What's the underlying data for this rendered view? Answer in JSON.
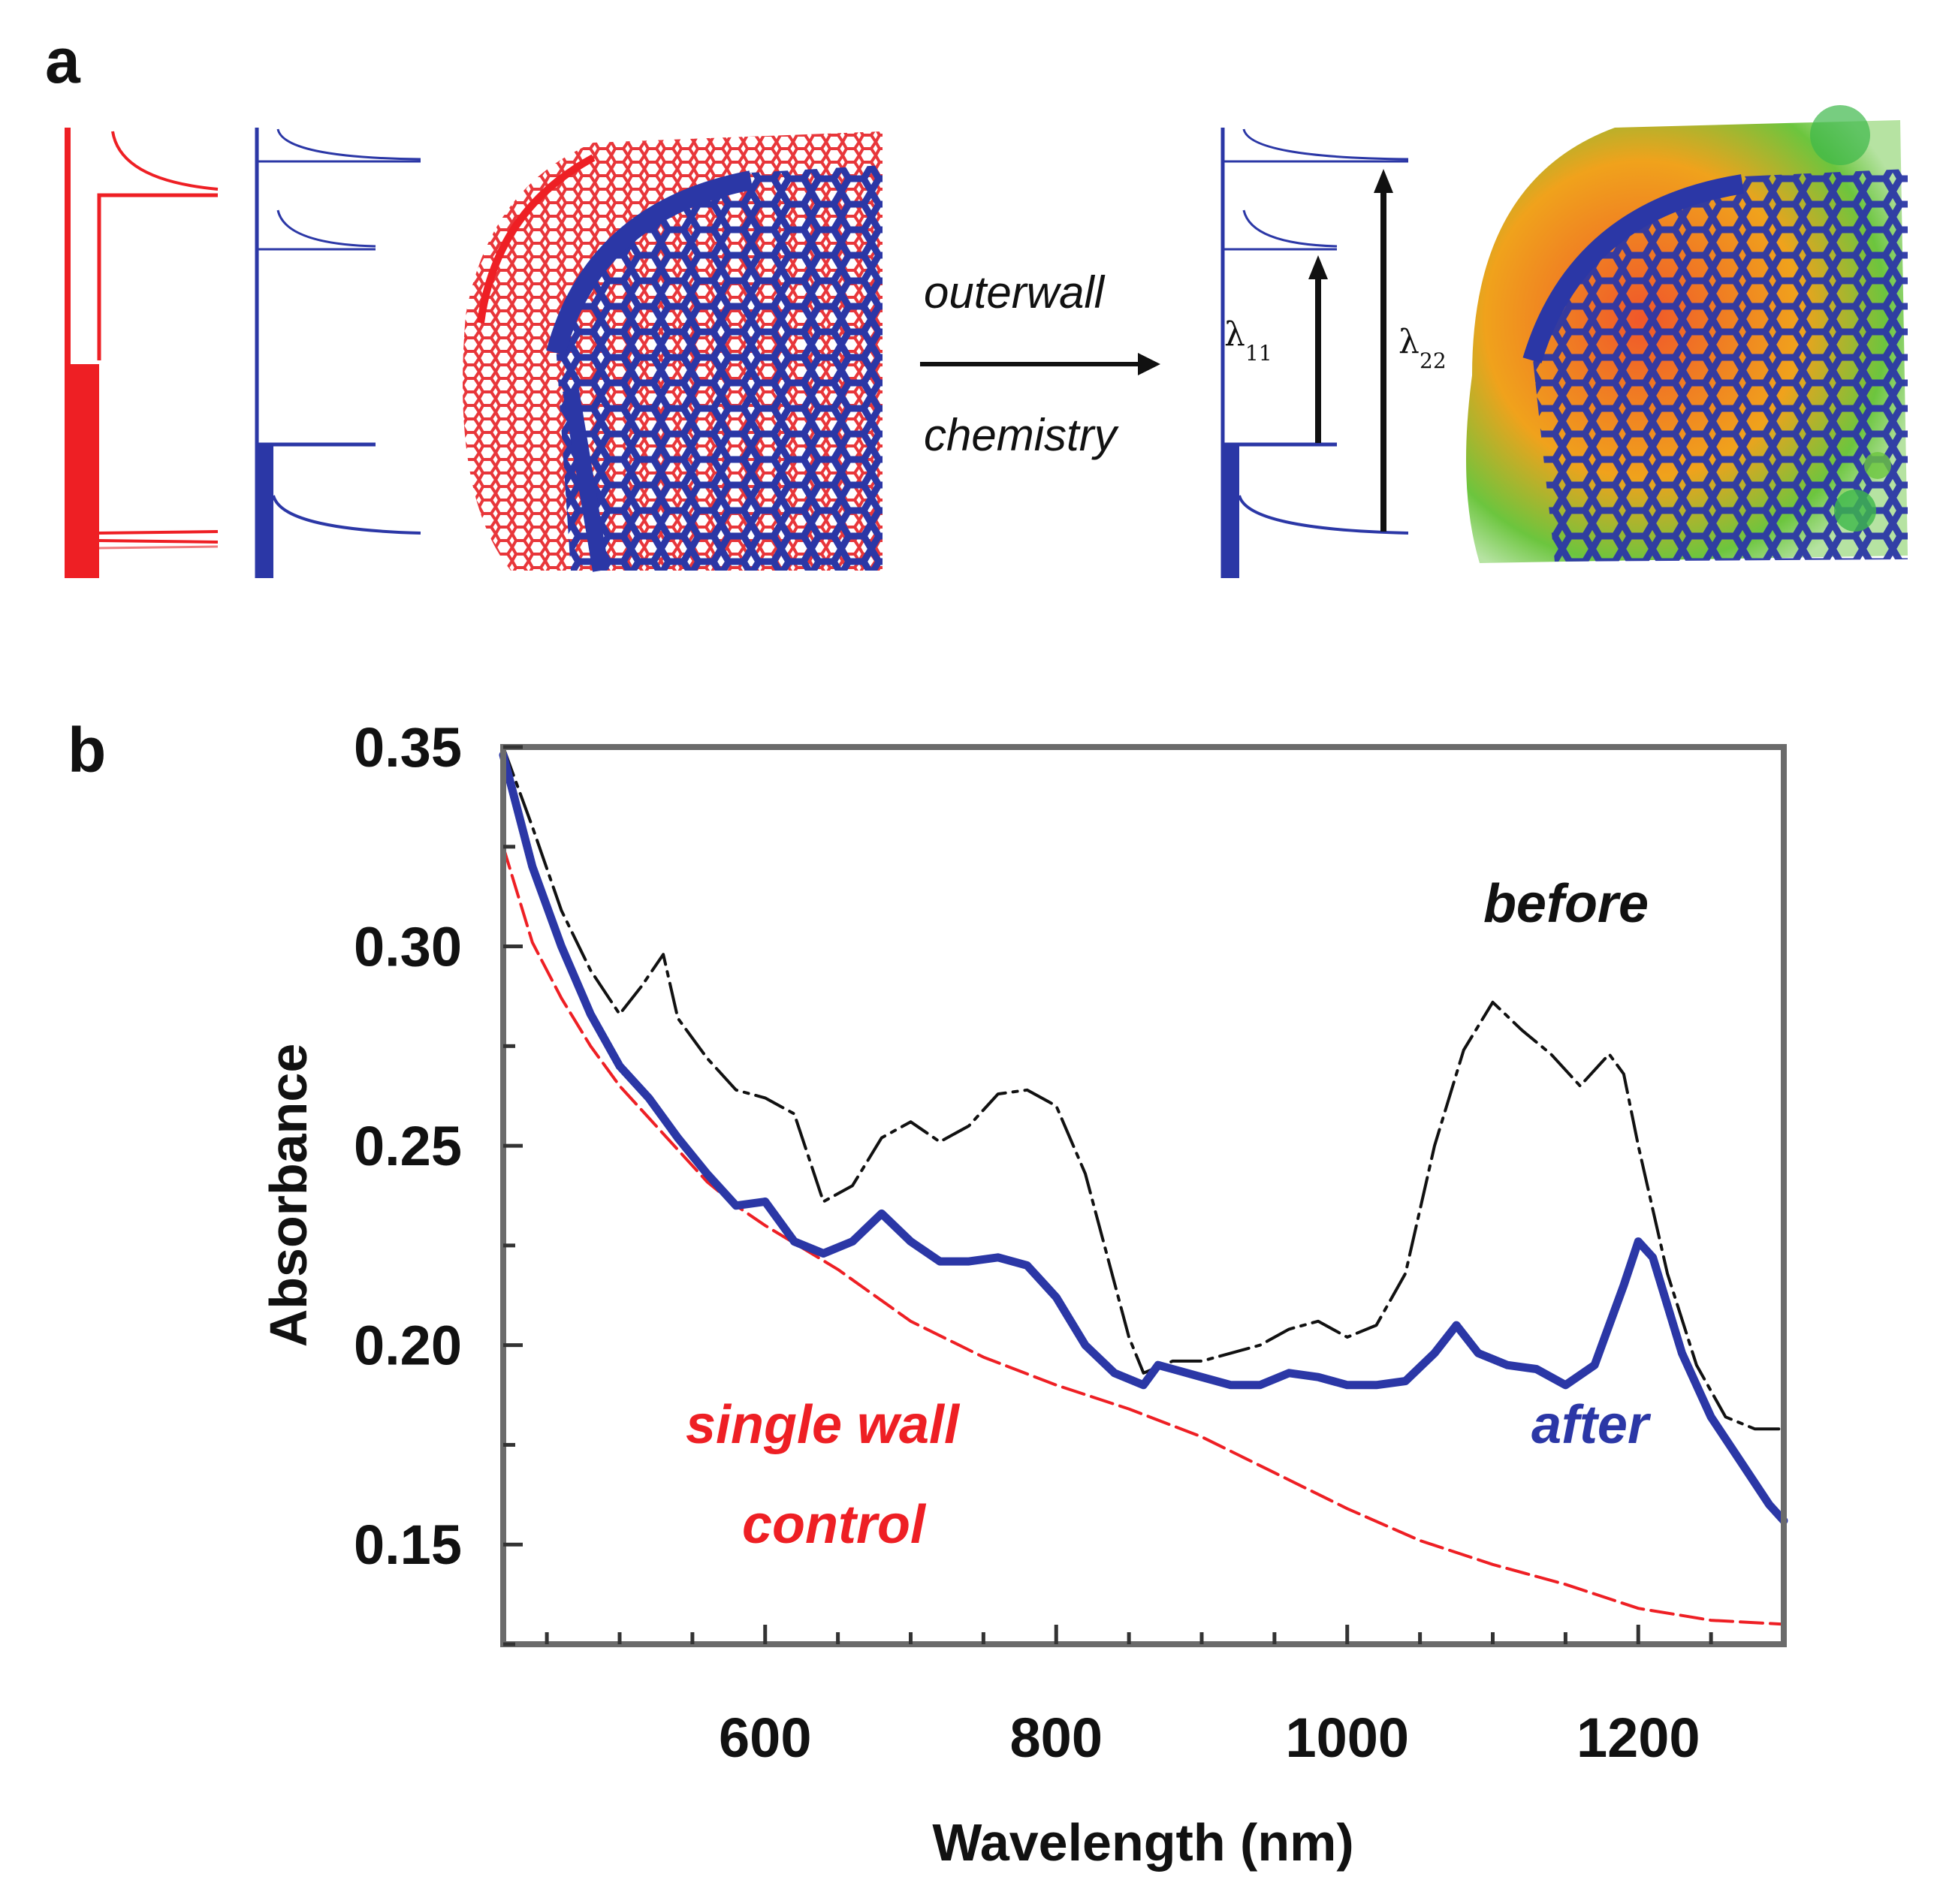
{
  "panel_a": {
    "letter": "a",
    "arrow_label_top": "outerwall",
    "arrow_label_bottom": "chemistry",
    "lambda11": {
      "symbol": "λ",
      "sub": "11"
    },
    "lambda22": {
      "symbol": "λ",
      "sub": "22"
    },
    "colors": {
      "red": "#ee1f24",
      "blue": "#2b37a6",
      "green": "#3db84a",
      "orange": "#f07a1c"
    }
  },
  "panel_b": {
    "letter": "b"
  },
  "chart_data": {
    "type": "line",
    "title": "",
    "xlabel": "Wavelength (nm)",
    "ylabel": "Absorbance",
    "xlim": [
      420,
      1300
    ],
    "ylim": [
      0.125,
      0.35
    ],
    "xticks": [
      600,
      800,
      1000,
      1200
    ],
    "xtick_labels": [
      "600",
      "800",
      "1000",
      "1200"
    ],
    "yticks": [
      0.15,
      0.2,
      0.25,
      0.3,
      0.35
    ],
    "ytick_labels": [
      "0.15",
      "0.20",
      "0.25",
      "0.30",
      "0.35"
    ],
    "grid": false,
    "series": [
      {
        "name": "before",
        "label": "before",
        "color": "#111111",
        "style": "dash-dot",
        "x": [
          420,
          440,
          460,
          480,
          500,
          515,
          530,
          540,
          560,
          580,
          600,
          620,
          640,
          660,
          680,
          700,
          720,
          740,
          760,
          780,
          800,
          820,
          850,
          860,
          880,
          900,
          920,
          940,
          960,
          980,
          1000,
          1020,
          1040,
          1060,
          1080,
          1100,
          1120,
          1140,
          1160,
          1180,
          1190,
          1200,
          1220,
          1240,
          1260,
          1280,
          1300
        ],
        "y": [
          0.35,
          0.33,
          0.309,
          0.294,
          0.283,
          0.29,
          0.298,
          0.282,
          0.272,
          0.264,
          0.262,
          0.258,
          0.236,
          0.24,
          0.252,
          0.256,
          0.251,
          0.255,
          0.263,
          0.264,
          0.26,
          0.243,
          0.202,
          0.193,
          0.196,
          0.196,
          0.198,
          0.2,
          0.204,
          0.206,
          0.202,
          0.205,
          0.218,
          0.25,
          0.274,
          0.286,
          0.279,
          0.273,
          0.265,
          0.273,
          0.268,
          0.25,
          0.218,
          0.195,
          0.182,
          0.179,
          0.179
        ]
      },
      {
        "name": "after",
        "label": "after",
        "color": "#2b37a6",
        "style": "solid",
        "x": [
          420,
          440,
          460,
          480,
          500,
          520,
          540,
          560,
          580,
          600,
          620,
          640,
          660,
          680,
          700,
          720,
          740,
          760,
          780,
          800,
          820,
          840,
          860,
          870,
          880,
          900,
          920,
          940,
          960,
          980,
          1000,
          1020,
          1040,
          1060,
          1075,
          1090,
          1110,
          1130,
          1150,
          1170,
          1190,
          1200,
          1210,
          1230,
          1250,
          1270,
          1290,
          1300
        ],
        "y": [
          0.348,
          0.32,
          0.3,
          0.283,
          0.27,
          0.262,
          0.252,
          0.243,
          0.235,
          0.236,
          0.226,
          0.223,
          0.226,
          0.233,
          0.226,
          0.221,
          0.221,
          0.222,
          0.22,
          0.212,
          0.2,
          0.193,
          0.19,
          0.195,
          0.194,
          0.192,
          0.19,
          0.19,
          0.193,
          0.192,
          0.19,
          0.19,
          0.191,
          0.198,
          0.205,
          0.198,
          0.195,
          0.194,
          0.19,
          0.195,
          0.215,
          0.226,
          0.222,
          0.198,
          0.182,
          0.171,
          0.16,
          0.156
        ]
      },
      {
        "name": "single wall control",
        "label": "single wall control",
        "label_lines": [
          "single wall",
          "control"
        ],
        "color": "#ee1f24",
        "style": "dashed",
        "x": [
          420,
          440,
          460,
          480,
          500,
          520,
          540,
          560,
          580,
          600,
          650,
          700,
          750,
          800,
          850,
          900,
          950,
          1000,
          1050,
          1100,
          1150,
          1200,
          1250,
          1300
        ],
        "y": [
          0.325,
          0.301,
          0.287,
          0.275,
          0.265,
          0.257,
          0.249,
          0.241,
          0.235,
          0.23,
          0.219,
          0.206,
          0.197,
          0.19,
          0.184,
          0.177,
          0.168,
          0.159,
          0.151,
          0.145,
          0.14,
          0.134,
          0.131,
          0.13
        ]
      }
    ]
  }
}
